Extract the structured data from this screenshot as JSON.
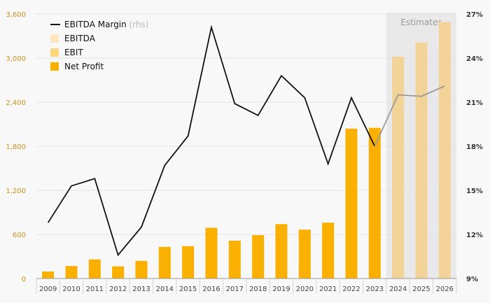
{
  "chart_data": {
    "type": "bar",
    "categories": [
      "2009",
      "2010",
      "2011",
      "2012",
      "2013",
      "2014",
      "2015",
      "2016",
      "2017",
      "2018",
      "2019",
      "2020",
      "2021",
      "2022",
      "2023",
      "2024",
      "2025",
      "2026"
    ],
    "estimates_label": "Estimates",
    "estimate_categories": [
      "2024",
      "2025",
      "2026"
    ],
    "y_left": {
      "ticks": [
        "0",
        "600",
        "1,200",
        "1,800",
        "2,400",
        "3,000",
        "3,600"
      ],
      "range": [
        0,
        3600
      ]
    },
    "y_right": {
      "ticks": [
        "9%",
        "12%",
        "15%",
        "18%",
        "21%",
        "24%",
        "27%"
      ],
      "range": [
        9,
        27
      ]
    },
    "series": [
      {
        "name": "EBITDA Margin",
        "suffix": "(rhs)",
        "type": "line",
        "axis": "right",
        "values": [
          12.8,
          15.3,
          15.8,
          10.6,
          12.5,
          16.7,
          18.7,
          26.1,
          20.9,
          20.1,
          22.8,
          21.3,
          16.8,
          21.3,
          18.0,
          21.5,
          21.4,
          22.1
        ]
      },
      {
        "name": "EBITDA",
        "type": "bar",
        "axis": "left",
        "values": [
          null,
          null,
          null,
          null,
          null,
          null,
          null,
          null,
          null,
          null,
          null,
          null,
          null,
          null,
          null,
          null,
          null,
          null
        ]
      },
      {
        "name": "EBIT",
        "type": "bar",
        "axis": "left",
        "values": [
          null,
          null,
          null,
          null,
          null,
          null,
          null,
          null,
          null,
          null,
          null,
          null,
          null,
          null,
          null,
          null,
          null,
          null
        ]
      },
      {
        "name": "Net Profit",
        "type": "bar",
        "axis": "left",
        "values": [
          95,
          170,
          260,
          165,
          240,
          430,
          440,
          690,
          515,
          590,
          740,
          665,
          760,
          2040,
          2050,
          3020,
          3210,
          3490
        ]
      }
    ],
    "colors": {
      "net_profit": "#f9b000",
      "net_profit_estimate": "#f3d398",
      "ebitda": "#fde8bf",
      "ebit": "#fdd57e",
      "line": "#111111",
      "line_estimate": "#9a9a9a",
      "estimates_shade": "#e9e9e9",
      "left_axis_text": "#c9921c"
    },
    "legend_placement": "top-left",
    "grid": true
  }
}
